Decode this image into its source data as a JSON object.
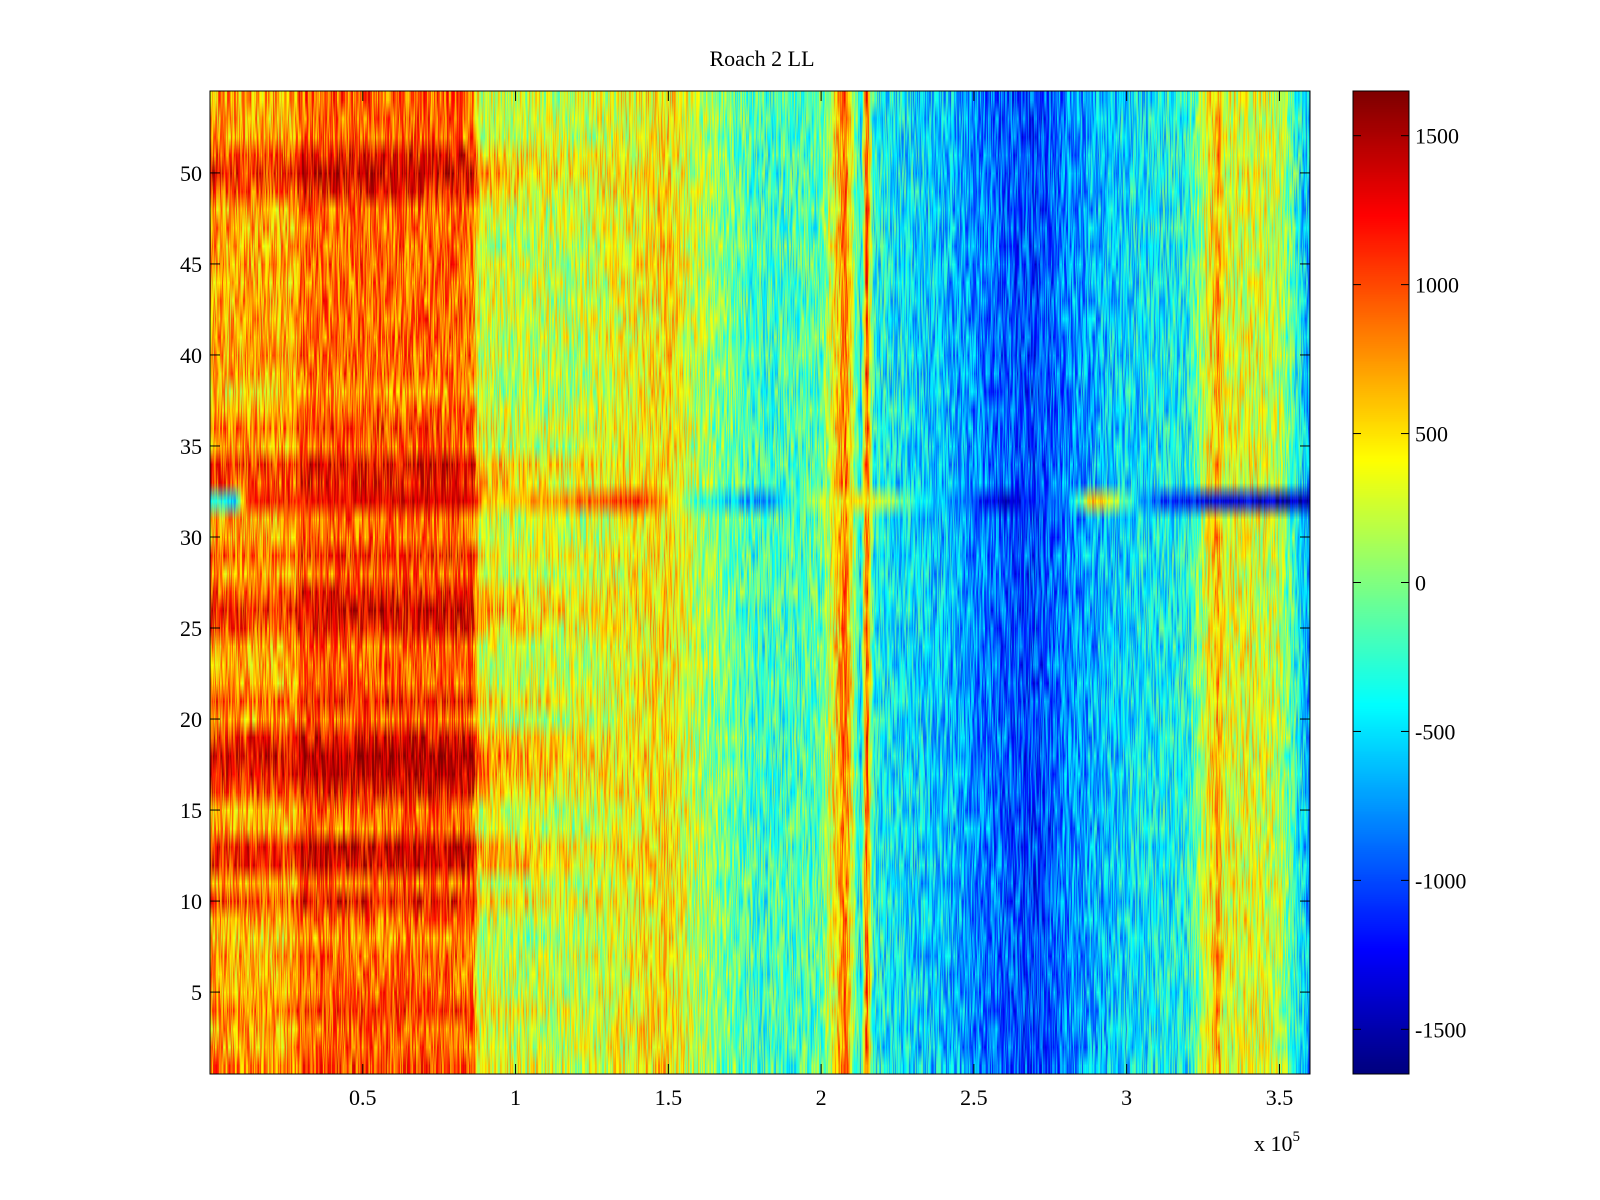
{
  "chart_data": {
    "type": "heatmap",
    "title": "Roach 2 LL",
    "xlabel": "",
    "ylabel": "",
    "x_multiplier_label": {
      "base": "x 10",
      "exponent": "5"
    },
    "xlim": [
      0,
      3.6
    ],
    "ylim": [
      0.5,
      54.5
    ],
    "xticks": [
      0.5,
      1,
      1.5,
      2,
      2.5,
      3,
      3.5
    ],
    "xtick_labels": [
      "0.5",
      "1",
      "1.5",
      "2",
      "2.5",
      "3",
      "3.5"
    ],
    "yticks": [
      5,
      10,
      15,
      20,
      25,
      30,
      35,
      40,
      45,
      50
    ],
    "ytick_labels": [
      "5",
      "10",
      "15",
      "20",
      "25",
      "30",
      "35",
      "40",
      "45",
      "50"
    ],
    "rows": 54,
    "colorbar": {
      "colormap": "jet",
      "clim": [
        -1650,
        1650
      ],
      "ticks": [
        -1500,
        -1000,
        -500,
        0,
        500,
        1000,
        1500
      ],
      "tick_labels": [
        "-1500",
        "-1000",
        "-500",
        "0",
        "500",
        "1000",
        "1500"
      ]
    },
    "column_profile": {
      "description_units": "x in units of 10^5, z in colorbar units",
      "x": [
        0.0,
        0.28,
        0.29,
        0.86,
        0.88,
        1.2,
        1.5,
        1.6,
        1.8,
        2.0,
        2.08,
        2.1,
        2.13,
        2.15,
        2.17,
        2.2,
        2.4,
        2.6,
        2.7,
        2.8,
        3.0,
        3.2,
        3.3,
        3.32,
        3.4,
        3.5,
        3.6
      ],
      "z": [
        700,
        650,
        900,
        900,
        250,
        200,
        500,
        150,
        -250,
        -150,
        900,
        300,
        -500,
        1100,
        -300,
        -400,
        -600,
        -950,
        -1050,
        -800,
        -500,
        -350,
        700,
        300,
        350,
        200,
        -700
      ]
    },
    "row_offsets": {
      "row": [
        1,
        4,
        8,
        10,
        12,
        13,
        16,
        17,
        18,
        19,
        21,
        25,
        26,
        27,
        29,
        32,
        33,
        34,
        36,
        38,
        42,
        49,
        50,
        51
      ],
      "z": [
        100,
        150,
        -150,
        300,
        450,
        450,
        350,
        550,
        600,
        400,
        250,
        300,
        450,
        300,
        200,
        400,
        300,
        400,
        150,
        -150,
        0,
        300,
        450,
        300
      ]
    },
    "row_32_profile": {
      "x": [
        0.0,
        0.08,
        0.12,
        0.3,
        0.86,
        0.9,
        1.1,
        1.4,
        1.5,
        1.6,
        1.8,
        2.1,
        2.2,
        2.3,
        2.6,
        2.8,
        2.9,
        3.1,
        3.3,
        3.6
      ],
      "z": [
        -300,
        -600,
        1100,
        1200,
        1400,
        500,
        700,
        1100,
        600,
        -250,
        -800,
        600,
        200,
        -250,
        -1400,
        -800,
        700,
        -1050,
        -1300,
        -1500
      ]
    }
  }
}
